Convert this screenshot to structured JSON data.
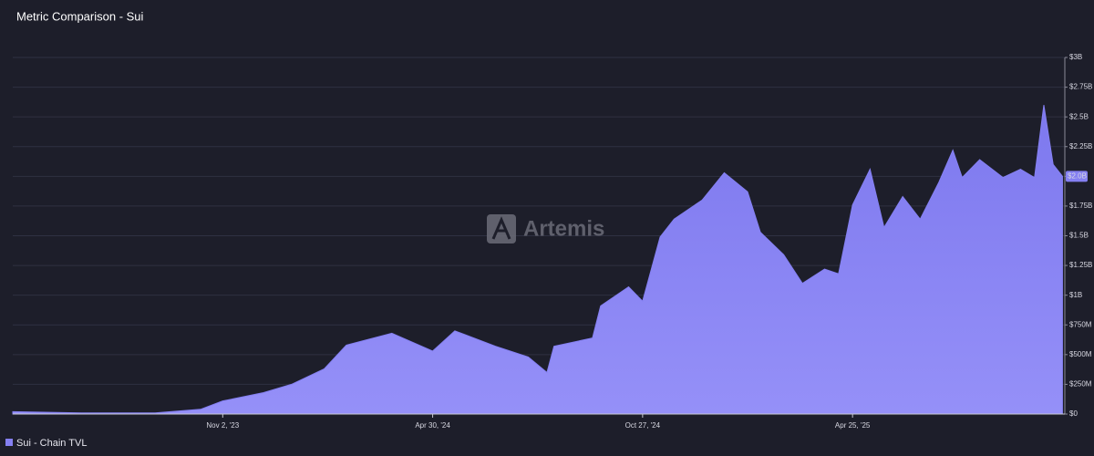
{
  "chart_data": {
    "type": "area",
    "title": "Metric Comparison - Sui",
    "watermark": "Artemis",
    "x": [
      "2023-05-06",
      "2023-07-04",
      "2023-09-05",
      "2023-10-14",
      "2023-11-02",
      "2023-12-07",
      "2023-12-31",
      "2024-01-28",
      "2024-02-16",
      "2024-03-26",
      "2024-04-30",
      "2024-05-19",
      "2024-06-23",
      "2024-07-21",
      "2024-08-06",
      "2024-08-12",
      "2024-09-14",
      "2024-09-21",
      "2024-10-15",
      "2024-10-27",
      "2024-11-11",
      "2024-11-23",
      "2024-12-17",
      "2025-01-05",
      "2025-01-25",
      "2025-02-05",
      "2025-02-25",
      "2025-03-13",
      "2025-04-01",
      "2025-04-13",
      "2025-04-25",
      "2025-05-10",
      "2025-05-22",
      "2025-06-07",
      "2025-06-22",
      "2025-07-08",
      "2025-07-20",
      "2025-07-28",
      "2025-08-12",
      "2025-09-01",
      "2025-09-16",
      "2025-09-28",
      "2025-10-06",
      "2025-10-14",
      "2025-10-22"
    ],
    "series": [
      {
        "name": "Sui - Chain TVL",
        "color": "#8580f2",
        "values": [
          20000000,
          10000000,
          10000000,
          40000000,
          110000000,
          180000000,
          250000000,
          380000000,
          580000000,
          680000000,
          530000000,
          700000000,
          570000000,
          480000000,
          350000000,
          570000000,
          640000000,
          910000000,
          1070000000,
          950000000,
          1490000000,
          1640000000,
          1800000000,
          2030000000,
          1870000000,
          1530000000,
          1340000000,
          1100000000,
          1220000000,
          1180000000,
          1760000000,
          2060000000,
          1570000000,
          1830000000,
          1640000000,
          1950000000,
          2220000000,
          1990000000,
          2140000000,
          1990000000,
          2060000000,
          1990000000,
          2600000000,
          2100000000,
          2000000000
        ]
      }
    ],
    "last_value": {
      "value": 2000000000,
      "label": "$2.0B"
    },
    "xlim": [
      "2023-05-06",
      "2025-10-24"
    ],
    "xticks": [
      {
        "value": "2023-11-02",
        "label": "Nov 2, '23"
      },
      {
        "value": "2024-04-30",
        "label": "Apr 30, '24"
      },
      {
        "value": "2024-10-27",
        "label": "Oct 27, '24"
      },
      {
        "value": "2025-04-25",
        "label": "Apr 25, '25"
      }
    ],
    "ylim": [
      0,
      3000000000
    ],
    "yticks": [
      {
        "value": 0,
        "label": "$0"
      },
      {
        "value": 250000000,
        "label": "$250M"
      },
      {
        "value": 500000000,
        "label": "$500M"
      },
      {
        "value": 750000000,
        "label": "$750M"
      },
      {
        "value": 1000000000,
        "label": "$1B"
      },
      {
        "value": 1250000000,
        "label": "$1.25B"
      },
      {
        "value": 1500000000,
        "label": "$1.5B"
      },
      {
        "value": 1750000000,
        "label": "$1.75B"
      },
      {
        "value": 2000000000,
        "label": "$2B"
      },
      {
        "value": 2250000000,
        "label": "$2.25B"
      },
      {
        "value": 2500000000,
        "label": "$2.5B"
      },
      {
        "value": 2750000000,
        "label": "$2.75B"
      },
      {
        "value": 3000000000,
        "label": "$3B"
      }
    ],
    "grid": true
  }
}
